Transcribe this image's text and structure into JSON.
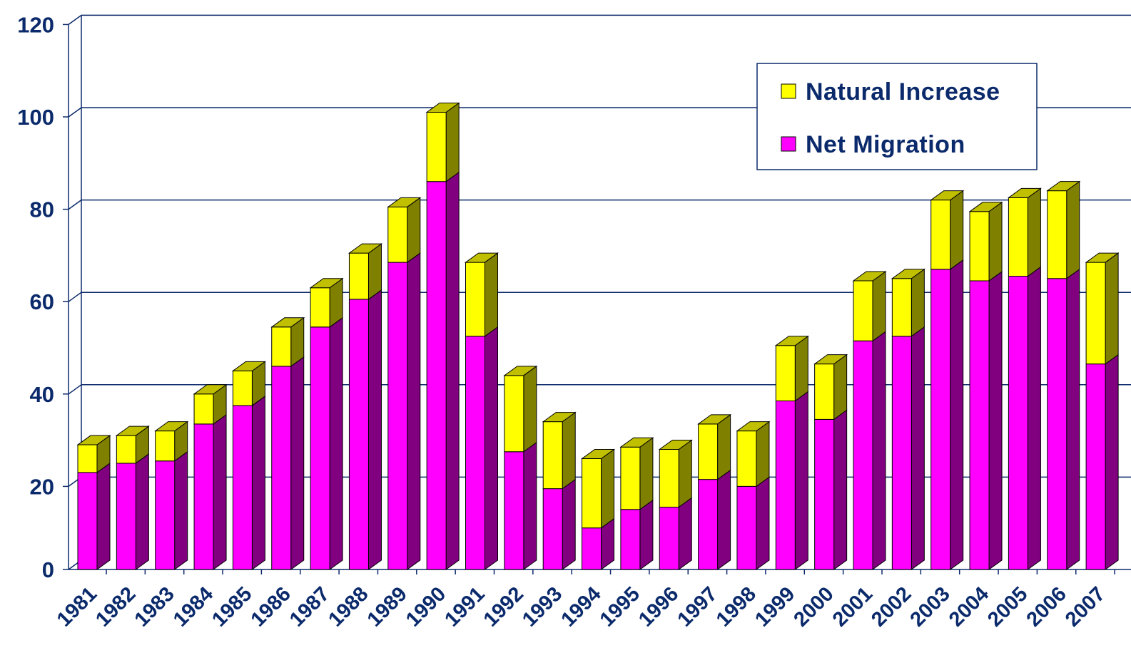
{
  "chart_data": {
    "type": "bar",
    "stacked": true,
    "three_d": true,
    "title": "",
    "xlabel": "",
    "ylabel": "",
    "ylim": [
      0,
      120
    ],
    "y_ticks": [
      "0",
      "20",
      "40",
      "60",
      "80",
      "100",
      "120"
    ],
    "grid": true,
    "legend_position": "top-right",
    "categories": [
      "1981",
      "1982",
      "1983",
      "1984",
      "1985",
      "1986",
      "1987",
      "1988",
      "1989",
      "1990",
      "1991",
      "1992",
      "1993",
      "1994",
      "1995",
      "1996",
      "1997",
      "1998",
      "1999",
      "2000",
      "2001",
      "2002",
      "2003",
      "2004",
      "2005",
      "2006",
      "2007"
    ],
    "series": [
      {
        "name": "Net Migration",
        "color": "#ff00ff",
        "side_color": "#800080",
        "values": [
          21,
          23,
          23.5,
          31.5,
          35.5,
          44,
          52.5,
          58.5,
          66.5,
          84,
          50.5,
          25.5,
          17.5,
          9,
          13,
          13.5,
          19.5,
          18,
          36.5,
          32.5,
          49.5,
          50.5,
          65,
          62.5,
          63.5,
          63,
          44.5
        ]
      },
      {
        "name": "Natural Increase",
        "color": "#ffff00",
        "side_color": "#808000",
        "values": [
          6,
          6,
          6.5,
          6.5,
          7.5,
          8.5,
          8.5,
          10,
          12,
          15,
          16,
          16.5,
          14.5,
          15,
          13.5,
          12.5,
          12,
          12,
          12,
          12,
          13,
          12.5,
          15,
          15,
          17,
          19,
          22
        ]
      }
    ]
  },
  "legend": {
    "items": [
      {
        "label": "Natural Increase",
        "color": "#ffff00"
      },
      {
        "label": "Net Migration",
        "color": "#ff00ff"
      }
    ]
  }
}
